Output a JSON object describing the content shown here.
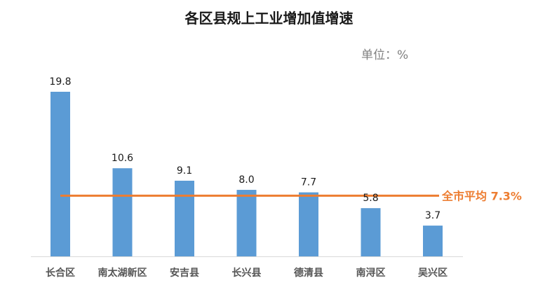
{
  "chart_data": {
    "type": "bar",
    "title": "各区县规上工业增加值增速",
    "unit_label": "单位：%",
    "categories": [
      "长合区",
      "南太湖新区",
      "安吉县",
      "长兴县",
      "德清县",
      "南浔区",
      "吴兴区"
    ],
    "values": [
      19.8,
      10.6,
      9.1,
      8.0,
      7.7,
      5.8,
      3.7
    ],
    "value_labels": [
      "19.8",
      "10.6",
      "9.1",
      "8.0",
      "7.7",
      "5.8",
      "3.7"
    ],
    "average": {
      "value": 7.3,
      "label": "全市平均 7.3%"
    },
    "ylim": [
      0,
      19.8
    ],
    "grid": false,
    "legend": "none",
    "colors": {
      "bar": "#5B9BD5",
      "average_line": "#ED7D31",
      "axis": "#D9D9D9"
    }
  }
}
